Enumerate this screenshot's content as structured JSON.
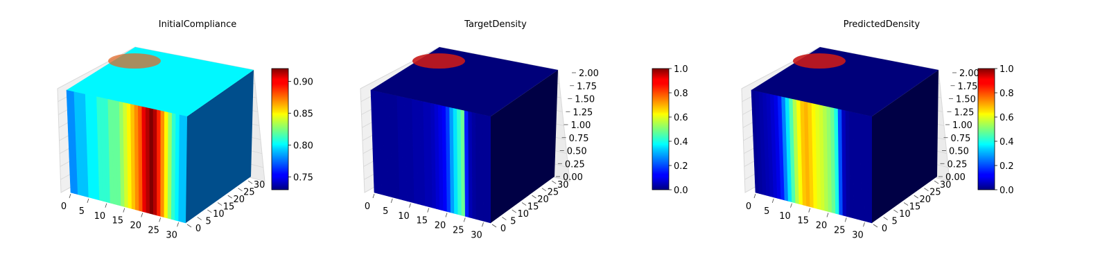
{
  "figure": {
    "panels": [
      {
        "title": "InitialCompliance"
      },
      {
        "title": "TargetDensity"
      },
      {
        "title": "PredictedDensity"
      }
    ]
  },
  "chart_data": [
    {
      "type": "heatmap",
      "subtype": "3d-voxel",
      "title": "InitialCompliance",
      "colormap": "jet",
      "x_ticks": [
        0,
        5,
        10,
        15,
        20,
        25,
        30
      ],
      "y_ticks": [
        0,
        5,
        10,
        15,
        20,
        25,
        30
      ],
      "z_ticks": [],
      "zlim": [
        0,
        2
      ],
      "grid": true,
      "colorbar": {
        "ticks": [
          0.75,
          0.8,
          0.85,
          0.9
        ],
        "tick_labels": [
          "0.75",
          "0.80",
          "0.85",
          "0.90"
        ],
        "range": [
          0.73,
          0.92
        ]
      },
      "front_face_columns": [
        0.78,
        0.78,
        0.79,
        0.79,
        0.79,
        0.8,
        0.8,
        0.8,
        0.81,
        0.81,
        0.81,
        0.82,
        0.82,
        0.82,
        0.83,
        0.84,
        0.85,
        0.86,
        0.87,
        0.88,
        0.9,
        0.91,
        0.92,
        0.91,
        0.89,
        0.87,
        0.85,
        0.83,
        0.81,
        0.8,
        0.79,
        0.79
      ]
    },
    {
      "type": "heatmap",
      "subtype": "3d-voxel",
      "title": "TargetDensity",
      "colormap": "jet",
      "x_ticks": [
        0,
        5,
        10,
        15,
        20,
        25,
        30
      ],
      "y_ticks": [
        0,
        5,
        10,
        15,
        20,
        25,
        30
      ],
      "z_ticks": [
        "0.00",
        "0.25",
        "0.50",
        "0.75",
        "1.00",
        "1.25",
        "1.50",
        "1.75",
        "2.00"
      ],
      "zlim": [
        0,
        2
      ],
      "grid": true,
      "colorbar": {
        "ticks": [
          0.0,
          0.2,
          0.4,
          0.6,
          0.8,
          1.0
        ],
        "tick_labels": [
          "0.0",
          "0.2",
          "0.4",
          "0.6",
          "0.8",
          "1.0"
        ],
        "range": [
          0,
          1
        ]
      },
      "front_face_columns": [
        0.02,
        0.02,
        0.02,
        0.02,
        0.02,
        0.02,
        0.02,
        0.03,
        0.03,
        0.03,
        0.03,
        0.04,
        0.04,
        0.04,
        0.05,
        0.05,
        0.06,
        0.08,
        0.1,
        0.12,
        0.18,
        0.28,
        0.35,
        0.42,
        0.48,
        0.15,
        0.05,
        0.03,
        0.02,
        0.02,
        0.02,
        0.02
      ]
    },
    {
      "type": "heatmap",
      "subtype": "3d-voxel",
      "title": "PredictedDensity",
      "colormap": "jet",
      "x_ticks": [
        0,
        5,
        10,
        15,
        20,
        25,
        30
      ],
      "y_ticks": [
        0,
        5,
        10,
        15,
        20,
        25,
        30
      ],
      "z_ticks": [
        "0.00",
        "0.25",
        "0.50",
        "0.75",
        "1.00",
        "1.25",
        "1.50",
        "1.75",
        "2.00"
      ],
      "zlim": [
        0,
        2
      ],
      "grid": true,
      "colorbar": {
        "ticks": [
          0.0,
          0.2,
          0.4,
          0.6,
          0.8,
          1.0
        ],
        "tick_labels": [
          "0.0",
          "0.2",
          "0.4",
          "0.6",
          "0.8",
          "1.0"
        ],
        "range": [
          0,
          1
        ]
      },
      "front_face_columns": [
        0.02,
        0.03,
        0.04,
        0.05,
        0.06,
        0.08,
        0.1,
        0.15,
        0.25,
        0.35,
        0.45,
        0.55,
        0.62,
        0.68,
        0.7,
        0.67,
        0.63,
        0.6,
        0.58,
        0.55,
        0.52,
        0.48,
        0.4,
        0.2,
        0.06,
        0.03,
        0.02,
        0.02,
        0.02,
        0.02,
        0.02,
        0.02
      ]
    }
  ]
}
